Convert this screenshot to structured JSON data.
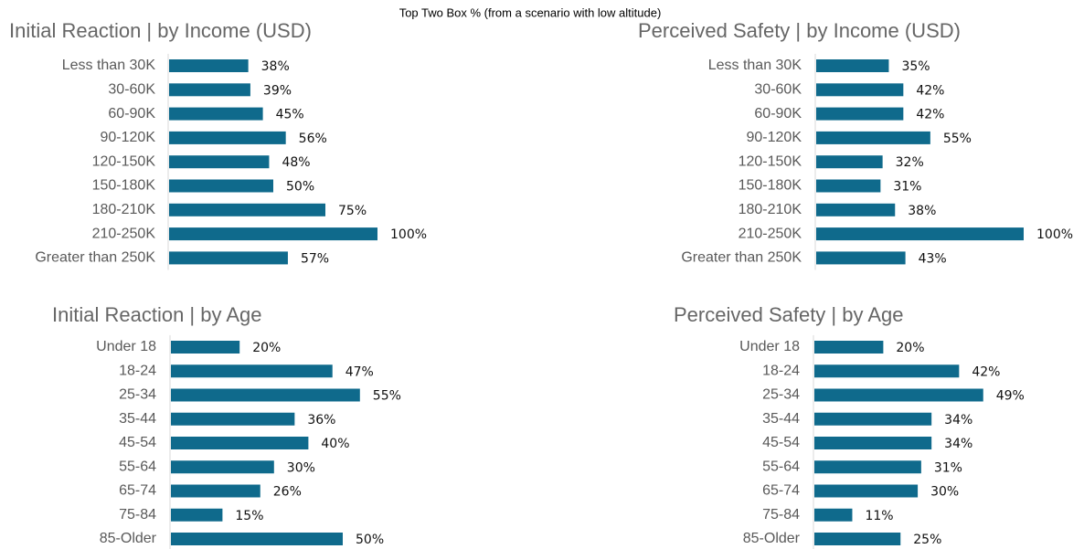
{
  "title": "Top Two Box % (from a scenario with low altitude)",
  "chart_data": [
    {
      "type": "bar",
      "orientation": "horizontal",
      "title": "Initial Reaction | by Income (USD)",
      "color": "#0f6a8c",
      "categories": [
        "Less than 30K",
        "30-60K",
        "60-90K",
        "90-120K",
        "120-150K",
        "150-180K",
        "180-210K",
        "210-250K",
        "Greater than 250K"
      ],
      "values": [
        38,
        39,
        45,
        56,
        48,
        50,
        75,
        100,
        57
      ],
      "value_labels": [
        "38%",
        "39%",
        "45%",
        "56%",
        "48%",
        "50%",
        "75%",
        "100%",
        "57%"
      ]
    },
    {
      "type": "bar",
      "orientation": "horizontal",
      "title": "Perceived Safety | by Income (USD)",
      "color": "#0f6a8c",
      "categories": [
        "Less than 30K",
        "30-60K",
        "60-90K",
        "90-120K",
        "120-150K",
        "150-180K",
        "180-210K",
        "210-250K",
        "Greater than 250K"
      ],
      "values": [
        35,
        42,
        42,
        55,
        32,
        31,
        38,
        100,
        43
      ],
      "value_labels": [
        "35%",
        "42%",
        "42%",
        "55%",
        "32%",
        "31%",
        "38%",
        "100%",
        "43%"
      ]
    },
    {
      "type": "bar",
      "orientation": "horizontal",
      "title": "Initial Reaction | by Age",
      "color": "#0f6a8c",
      "categories": [
        "Under 18",
        "18-24",
        "25-34",
        "35-44",
        "45-54",
        "55-64",
        "65-74",
        "75-84",
        "85-Older"
      ],
      "values": [
        20,
        47,
        55,
        36,
        40,
        30,
        26,
        15,
        50
      ],
      "value_labels": [
        "20%",
        "47%",
        "55%",
        "36%",
        "40%",
        "30%",
        "26%",
        "15%",
        "50%"
      ]
    },
    {
      "type": "bar",
      "orientation": "horizontal",
      "title": "Perceived Safety | by Age",
      "color": "#0f6a8c",
      "categories": [
        "Under 18",
        "18-24",
        "25-34",
        "35-44",
        "45-54",
        "55-64",
        "65-74",
        "75-84",
        "85-Older"
      ],
      "values": [
        20,
        42,
        49,
        34,
        34,
        31,
        30,
        11,
        25
      ],
      "value_labels": [
        "20%",
        "42%",
        "49%",
        "34%",
        "34%",
        "31%",
        "30%",
        "11%",
        "25%"
      ]
    }
  ]
}
